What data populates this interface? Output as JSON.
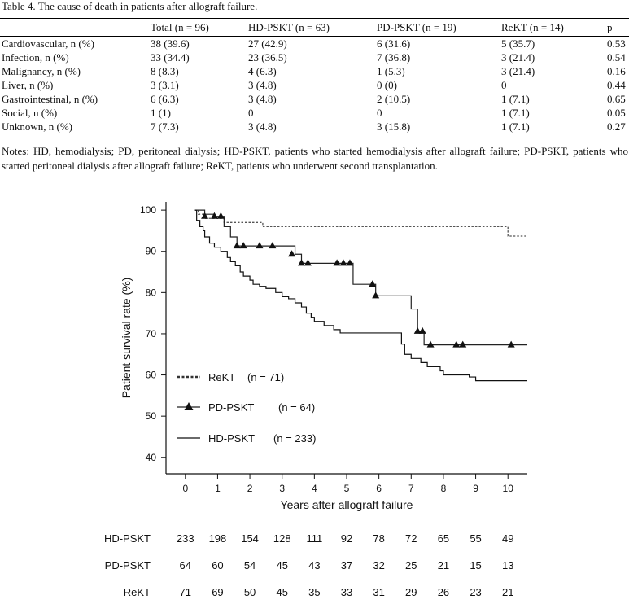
{
  "table": {
    "caption_label": "Table 4.",
    "caption_text": "The cause of death in patients after allograft failure.",
    "headers": [
      "",
      "Total (n = 96)",
      "HD-PSKT (n = 63)",
      "PD-PSKT (n = 19)",
      "ReKT (n = 14)",
      "p"
    ],
    "rows": [
      [
        "Cardiovascular, n (%)",
        "38 (39.6)",
        "27 (42.9)",
        "6 (31.6)",
        "5 (35.7)",
        "0.53"
      ],
      [
        "Infection, n (%)",
        "33 (34.4)",
        "23 (36.5)",
        "7 (36.8)",
        "3 (21.4)",
        "0.54"
      ],
      [
        "Malignancy, n (%)",
        "8 (8.3)",
        "4 (6.3)",
        "1 (5.3)",
        "3 (21.4)",
        "0.16"
      ],
      [
        "Liver, n (%)",
        "3 (3.1)",
        "3 (4.8)",
        "0 (0)",
        "0",
        "0.44"
      ],
      [
        "Gastrointestinal, n (%)",
        "6 (6.3)",
        "3 (4.8)",
        "2 (10.5)",
        "1 (7.1)",
        "0.65"
      ],
      [
        "Social, n (%)",
        "1 (1)",
        "0",
        "0",
        "1 (7.1)",
        "0.05"
      ],
      [
        "Unknown, n (%)",
        "7 (7.3)",
        "3 (4.8)",
        "3 (15.8)",
        "1 (7.1)",
        "0.27"
      ]
    ],
    "notes": "Notes: HD, hemodialysis; PD, peritoneal dialysis; HD-PSKT, patients who started hemodialysis after allograft failure; PD-PSKT, patients who started peritoneal dialysis after allograft failure; ReKT, patients who underwent second transplantation."
  },
  "chart_data": {
    "type": "line",
    "xlabel": "Years after allograft failure",
    "ylabel": "Patient survival rate (%)",
    "xlim": [
      -0.6,
      10.6
    ],
    "ylim": [
      36,
      102
    ],
    "xticks": [
      0,
      1,
      2,
      3,
      4,
      5,
      6,
      7,
      8,
      9,
      10
    ],
    "yticks": [
      40,
      50,
      60,
      70,
      80,
      90,
      100
    ],
    "legend_position": "lower-left",
    "series": [
      {
        "name": "ReKT (n = 71)",
        "style": "dotted",
        "steps": [
          [
            0.3,
            100
          ],
          [
            0.4,
            99
          ],
          [
            0.6,
            98
          ],
          [
            1.0,
            98
          ],
          [
            1.2,
            97
          ],
          [
            2.3,
            97
          ],
          [
            2.4,
            96
          ],
          [
            10.0,
            96
          ],
          [
            10.0,
            93.7
          ],
          [
            10.6,
            93.7
          ]
        ],
        "censor": []
      },
      {
        "name": "PD-PSKT (n = 64)",
        "style": "solid-triangle",
        "steps": [
          [
            0.3,
            100
          ],
          [
            0.6,
            99
          ],
          [
            0.9,
            98.5
          ],
          [
            1.2,
            96
          ],
          [
            1.4,
            93.5
          ],
          [
            1.6,
            91.3
          ],
          [
            3.3,
            91.3
          ],
          [
            3.4,
            89.3
          ],
          [
            3.6,
            87.1
          ],
          [
            4.7,
            87.1
          ],
          [
            4.8,
            87.1
          ],
          [
            5.1,
            87.1
          ],
          [
            5.2,
            82
          ],
          [
            5.8,
            82
          ],
          [
            5.9,
            79.2
          ],
          [
            6.8,
            79.2
          ],
          [
            7.0,
            76
          ],
          [
            7.2,
            70.6
          ],
          [
            7.4,
            67.3
          ],
          [
            10.6,
            67.3
          ]
        ],
        "censor": [
          [
            0.6,
            98.5
          ],
          [
            0.9,
            98.5
          ],
          [
            1.1,
            98.5
          ],
          [
            1.6,
            91.3
          ],
          [
            1.8,
            91.3
          ],
          [
            2.3,
            91.3
          ],
          [
            2.7,
            91.3
          ],
          [
            3.3,
            89.3
          ],
          [
            3.6,
            87.1
          ],
          [
            3.8,
            87.1
          ],
          [
            4.7,
            87.1
          ],
          [
            4.9,
            87.1
          ],
          [
            5.1,
            87.1
          ],
          [
            5.8,
            82
          ],
          [
            5.9,
            79.2
          ],
          [
            7.2,
            70.6
          ],
          [
            7.35,
            70.6
          ],
          [
            7.6,
            67.3
          ],
          [
            8.4,
            67.3
          ],
          [
            8.6,
            67.3
          ],
          [
            10.1,
            67.3
          ]
        ]
      },
      {
        "name": "HD-PSKT (n = 233)",
        "style": "solid",
        "steps": [
          [
            0.3,
            100
          ],
          [
            0.35,
            97.5
          ],
          [
            0.45,
            96
          ],
          [
            0.55,
            95
          ],
          [
            0.6,
            93.5
          ],
          [
            0.75,
            92
          ],
          [
            0.9,
            91
          ],
          [
            1.1,
            90
          ],
          [
            1.3,
            88.5
          ],
          [
            1.4,
            87.5
          ],
          [
            1.55,
            86.5
          ],
          [
            1.7,
            85
          ],
          [
            1.8,
            84
          ],
          [
            2.0,
            83
          ],
          [
            2.1,
            82
          ],
          [
            2.3,
            81.5
          ],
          [
            2.5,
            81
          ],
          [
            2.8,
            80
          ],
          [
            3.0,
            79
          ],
          [
            3.2,
            78.5
          ],
          [
            3.4,
            77.5
          ],
          [
            3.6,
            76.5
          ],
          [
            3.75,
            75
          ],
          [
            3.9,
            74
          ],
          [
            4.0,
            73
          ],
          [
            4.3,
            72
          ],
          [
            4.6,
            71
          ],
          [
            4.8,
            70.2
          ],
          [
            6.7,
            70.2
          ],
          [
            6.7,
            67.5
          ],
          [
            6.8,
            65
          ],
          [
            7.0,
            64
          ],
          [
            7.3,
            63
          ],
          [
            7.5,
            62
          ],
          [
            7.9,
            61
          ],
          [
            8.0,
            60
          ],
          [
            8.8,
            59.5
          ],
          [
            9.0,
            58.6
          ],
          [
            10.6,
            58.6
          ]
        ],
        "censor": []
      }
    ],
    "legend": [
      {
        "label": "ReKT",
        "n_text": "(n = 71)"
      },
      {
        "label": "PD-PSKT",
        "n_text": "(n = 64)"
      },
      {
        "label": "HD-PSKT",
        "n_text": "(n = 233)"
      }
    ],
    "risk_table": {
      "times": [
        0,
        1,
        2,
        3,
        4,
        5,
        6,
        7,
        8,
        9,
        10
      ],
      "rows": [
        {
          "name": "HD-PSKT",
          "values": [
            233,
            198,
            154,
            128,
            111,
            92,
            78,
            72,
            65,
            55,
            49
          ]
        },
        {
          "name": "PD-PSKT",
          "values": [
            64,
            60,
            54,
            45,
            43,
            37,
            32,
            25,
            21,
            15,
            13
          ]
        },
        {
          "name": "ReKT",
          "values": [
            71,
            69,
            50,
            45,
            35,
            33,
            31,
            29,
            26,
            23,
            21
          ]
        }
      ]
    }
  }
}
